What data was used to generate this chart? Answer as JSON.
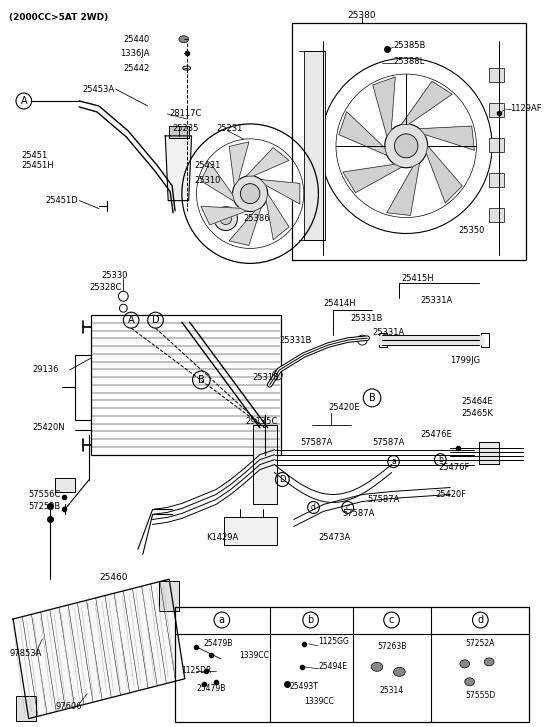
{
  "bg_color": "#ffffff",
  "lc": "#000000",
  "tc": "#000000",
  "fig_w": 5.49,
  "fig_h": 7.27,
  "dpi": 100,
  "labels": {
    "top_note": "(2000CC>5AT 2WD)",
    "25380": "25380",
    "25440": "25440",
    "1336JA": "1336JA",
    "25442": "25442",
    "25453A": "25453A",
    "28117C": "28117C",
    "25235": "25235",
    "25431": "25431",
    "25310": "25310",
    "25231": "25231",
    "25385B": "25385B",
    "25388L": "25388L",
    "1129AF": "1129AF",
    "25386": "25386",
    "25350": "25350",
    "25451": "25451",
    "25451H": "25451H",
    "25451D": "25451D",
    "25330": "25330",
    "25328C": "25328C",
    "29136": "29136",
    "25420N": "25420N",
    "25318": "25318",
    "29135C": "29135C",
    "25414H": "25414H",
    "25331B": "25331B",
    "25331A": "25331A",
    "25415H": "25415H",
    "1799JG": "1799JG",
    "25420E": "25420E",
    "57587A": "57587A",
    "25464E": "25464E",
    "25465K": "25465K",
    "25476E": "25476E",
    "25476F": "25476F",
    "25420F": "25420F",
    "25473A": "25473A",
    "K1429A": "K1429A",
    "57556C": "57556C",
    "57252B": "57252B",
    "25460": "25460",
    "97853A": "97853A",
    "97606": "97606",
    "25479B": "25479B",
    "1339CC": "1339CC",
    "1125DR": "1125DR",
    "1125GG": "1125GG",
    "25494E": "25494E",
    "25493T": "25493T",
    "57263B": "57263B",
    "25314": "25314",
    "57252A": "57252A",
    "57555D": "57555D"
  }
}
